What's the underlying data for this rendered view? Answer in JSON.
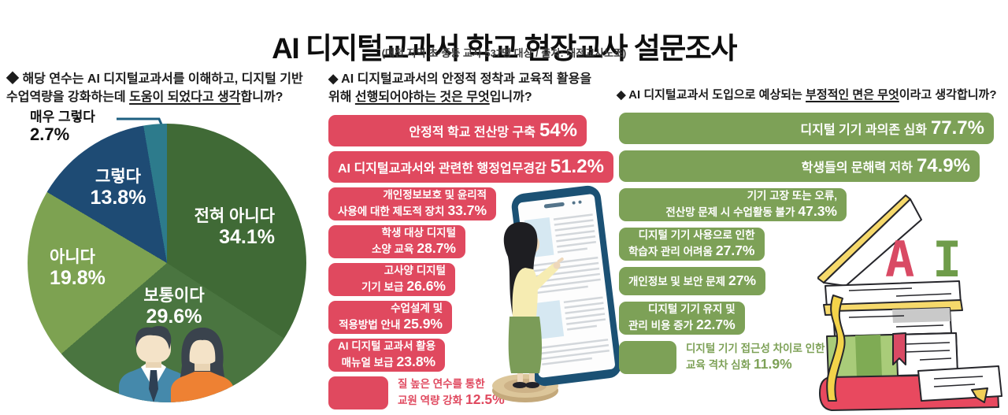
{
  "header": {
    "title": "AI 디지털교과서 학교 현장교사 설문조사",
    "subtitle": "(대전 지역 초·중등 교사 537명 대상 / 출처: 대전교사노조)"
  },
  "questions": {
    "q1_parts": [
      {
        "text": "◆ 해당 연수는 AI 디지털교과서를 이해하고, 디지털 기반\n수업역량을 강화하는데 ",
        "strong": false
      },
      {
        "text": "도움이 되었다고 생각",
        "strong": true
      },
      {
        "text": "합니까?",
        "strong": false
      }
    ],
    "q2_parts": [
      {
        "text": "◆ AI 디지털교과서의 안정적 정착과 교육적 활용을\n위해 ",
        "strong": false
      },
      {
        "text": "선행되어야하는 것은 무엇",
        "strong": true
      },
      {
        "text": "입니까?",
        "strong": false
      }
    ],
    "q3_parts": [
      {
        "text": "◆ AI 디지털교과서 도입으로 예상되는 ",
        "strong": false
      },
      {
        "text": "부정적인 면은 무엇",
        "strong": true
      },
      {
        "text": "이라고 생각합니까?",
        "strong": false
      }
    ]
  },
  "chart_data": [
    {
      "type": "pie",
      "question": "해당 연수는 AI 디지털교과서를 이해하고, 디지털 기반 수업역량을 강화하는데 도움이 되었다고 생각합니까?",
      "start_angle": "12-oclock-clockwise",
      "slices": [
        {
          "label": "전혀 아니다",
          "value": 34.1,
          "pct": "34.1%",
          "color": "#406A36",
          "label_inside": true
        },
        {
          "label": "보통이다",
          "value": 29.6,
          "pct": "29.6%",
          "color": "#4A7540",
          "label_inside": true
        },
        {
          "label": "아니다",
          "value": 19.8,
          "pct": "19.8%",
          "color": "#7DA251",
          "label_inside": true
        },
        {
          "label": "그렇다",
          "value": 13.8,
          "pct": "13.8%",
          "color": "#1E4B74",
          "label_inside": true
        },
        {
          "label": "매우 그렇다",
          "value": 2.7,
          "pct": "2.7%",
          "color": "#2D7B8C",
          "label_inside": false
        }
      ]
    },
    {
      "type": "bar",
      "orientation": "horizontal",
      "question": "AI 디지털교과서의 안정적 정착과 교육적 활용을 위해 선행되어야하는 것은 무엇입니까?",
      "bar_color": "#E0495F",
      "xlim": [
        0,
        60
      ],
      "items": [
        {
          "lines": [
            "안정적 학교 전산망 구축"
          ],
          "value": 54,
          "pct": "54%"
        },
        {
          "lines": [
            "AI 디지털교과서와 관련한 행정업무경감"
          ],
          "value": 51.2,
          "pct": "51.2%"
        },
        {
          "lines": [
            "개인정보보호 및 윤리적",
            "사용에 대한 제도적 장치"
          ],
          "value": 33.7,
          "pct": "33.7%"
        },
        {
          "lines": [
            "학생 대상 디지털",
            "소양 교육"
          ],
          "value": 28.7,
          "pct": "28.7%"
        },
        {
          "lines": [
            "고사양 디지털",
            "기기 보급"
          ],
          "value": 26.6,
          "pct": "26.6%"
        },
        {
          "lines": [
            "수업설계 및",
            "적용방법 안내"
          ],
          "value": 25.9,
          "pct": "25.9%"
        },
        {
          "lines": [
            "AI 디지털 교과서 활용",
            "매뉴얼 보급"
          ],
          "value": 23.8,
          "pct": "23.8%"
        },
        {
          "lines": [
            "질 높은 연수를 통한",
            "교원 역량 강화"
          ],
          "value": 12.5,
          "pct": "12.5%",
          "label_outside": true
        }
      ]
    },
    {
      "type": "bar",
      "orientation": "horizontal",
      "question": "AI 디지털교과서 도입으로 예상되는 부정적인 면은 무엇이라고 생각합니까?",
      "bar_color": "#7DA157",
      "xlim": [
        0,
        80
      ],
      "items": [
        {
          "lines": [
            "디지털 기기 과의존 심화"
          ],
          "value": 77.7,
          "pct": "77.7%"
        },
        {
          "lines": [
            "학생들의 문해력 저하"
          ],
          "value": 74.9,
          "pct": "74.9%"
        },
        {
          "lines": [
            "기기 고장 또는 오류,",
            "전산망 문제 시 수업활동 불가"
          ],
          "value": 47.3,
          "pct": "47.3%"
        },
        {
          "lines": [
            "디지털 기기 사용으로 인한",
            "학습자 관리 어려움"
          ],
          "value": 27.7,
          "pct": "27.7%"
        },
        {
          "lines": [
            "개인정보 및 보안 문제"
          ],
          "value": 27,
          "pct": "27%"
        },
        {
          "lines": [
            "디지털 기기 유지 및",
            "관리 비용 증가"
          ],
          "value": 22.7,
          "pct": "22.7%"
        },
        {
          "lines": [
            "디지털 기기 접근성 차이로 인한",
            "교육 격차 심화"
          ],
          "value": 11.9,
          "pct": "11.9%",
          "label_outside": true
        }
      ]
    }
  ],
  "decor": {
    "ai_a": "A",
    "ai_i": "I",
    "callout_color": "#1D5F80"
  }
}
